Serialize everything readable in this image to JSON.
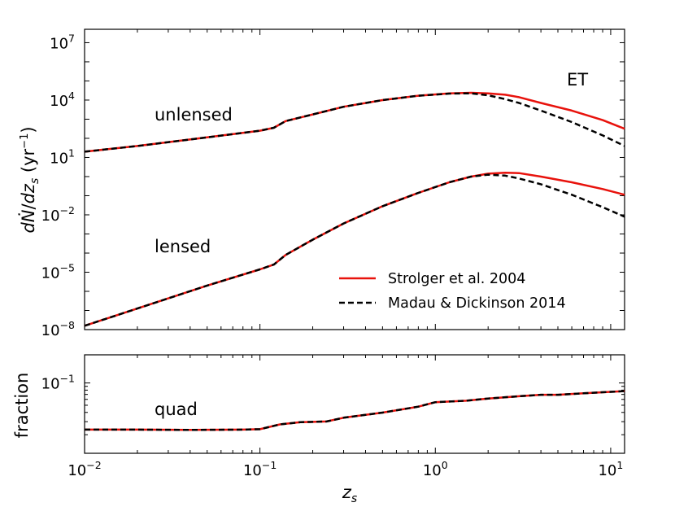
{
  "chart_data": [
    {
      "type": "line",
      "panel": "top",
      "title": "",
      "xlabel": "",
      "ylabel": "dṄ/dz_s (yr⁻¹)",
      "xscale": "log",
      "yscale": "log",
      "xlim": [
        0.01,
        12
      ],
      "ylim_exp": [
        -8,
        7.7
      ],
      "x_ticks": [
        {
          "v": 0.01,
          "base": "10",
          "exp": "−2"
        },
        {
          "v": 0.1,
          "base": "10",
          "exp": "−1"
        },
        {
          "v": 1,
          "base": "10",
          "exp": "0"
        },
        {
          "v": 10,
          "base": "10",
          "exp": "1"
        }
      ],
      "y_ticks": [
        {
          "e": 7,
          "base": "10",
          "exp": "7"
        },
        {
          "e": 4,
          "base": "10",
          "exp": "4"
        },
        {
          "e": 1,
          "base": "10",
          "exp": "1"
        },
        {
          "e": -2,
          "base": "10",
          "exp": "−2"
        },
        {
          "e": -5,
          "base": "10",
          "exp": "−5"
        },
        {
          "e": -8,
          "base": "10",
          "exp": "−8"
        }
      ],
      "annotations": {
        "label_tag": "ET",
        "unlensed": "unlensed",
        "lensed": "lensed"
      },
      "legend": {
        "placement": "lower-right",
        "entries": [
          {
            "label": "Strolger et al. 2004",
            "style": "solid",
            "color": "#e8120c"
          },
          {
            "label": "Madau & Dickinson 2014",
            "style": "dashed",
            "color": "#000000"
          }
        ]
      },
      "series": [
        {
          "name": "unlensed – Strolger et al. 2004",
          "color": "#e8120c",
          "style": "solid",
          "x": [
            0.01,
            0.02,
            0.05,
            0.1,
            0.12,
            0.14,
            0.2,
            0.3,
            0.5,
            0.8,
            1.2,
            1.6,
            2.0,
            2.5,
            3,
            4,
            6,
            9,
            12
          ],
          "logy": [
            1.3,
            1.6,
            2.05,
            2.4,
            2.55,
            2.9,
            3.25,
            3.65,
            4.0,
            4.23,
            4.35,
            4.38,
            4.35,
            4.28,
            4.15,
            3.85,
            3.45,
            2.95,
            2.5
          ]
        },
        {
          "name": "unlensed – Madau & Dickinson 2014",
          "color": "#000000",
          "style": "dashed",
          "x": [
            0.01,
            0.02,
            0.05,
            0.1,
            0.12,
            0.14,
            0.2,
            0.3,
            0.5,
            0.8,
            1.2,
            1.6,
            2.0,
            2.5,
            3,
            4,
            6,
            9,
            12
          ],
          "logy": [
            1.3,
            1.6,
            2.05,
            2.4,
            2.55,
            2.9,
            3.25,
            3.65,
            4.0,
            4.23,
            4.34,
            4.35,
            4.25,
            4.05,
            3.85,
            3.45,
            2.85,
            2.15,
            1.6
          ]
        },
        {
          "name": "lensed – Strolger et al. 2004",
          "color": "#e8120c",
          "style": "solid",
          "x": [
            0.01,
            0.02,
            0.05,
            0.1,
            0.12,
            0.14,
            0.2,
            0.3,
            0.5,
            0.8,
            1.2,
            1.6,
            2.0,
            2.5,
            3,
            4,
            6,
            9,
            12
          ],
          "logy": [
            -7.8,
            -6.9,
            -5.7,
            -4.85,
            -4.6,
            -4.1,
            -3.3,
            -2.45,
            -1.55,
            -0.85,
            -0.3,
            0.0,
            0.15,
            0.2,
            0.18,
            0.0,
            -0.3,
            -0.65,
            -0.95
          ]
        },
        {
          "name": "lensed – Madau & Dickinson 2014",
          "color": "#000000",
          "style": "dashed",
          "x": [
            0.01,
            0.02,
            0.05,
            0.1,
            0.12,
            0.14,
            0.2,
            0.3,
            0.5,
            0.8,
            1.2,
            1.6,
            2.0,
            2.5,
            3,
            4,
            6,
            9,
            12
          ],
          "logy": [
            -7.8,
            -6.9,
            -5.7,
            -4.85,
            -4.6,
            -4.1,
            -3.3,
            -2.45,
            -1.55,
            -0.85,
            -0.3,
            0.0,
            0.1,
            0.05,
            -0.1,
            -0.4,
            -0.95,
            -1.6,
            -2.1
          ]
        }
      ]
    },
    {
      "type": "line",
      "panel": "bottom",
      "xlabel": "z_s",
      "ylabel": "fraction",
      "xscale": "log",
      "yscale": "log",
      "xlim": [
        0.01,
        12
      ],
      "ylim_exp": [
        -1.95,
        -0.62
      ],
      "y_ticks": [
        {
          "e": -1,
          "base": "10",
          "exp": "−1"
        }
      ],
      "annotations": {
        "quad": "quad"
      },
      "series": [
        {
          "name": "quad – Strolger et al. 2004",
          "color": "#e8120c",
          "style": "solid",
          "x": [
            0.01,
            0.02,
            0.04,
            0.08,
            0.1,
            0.13,
            0.17,
            0.24,
            0.3,
            0.5,
            0.8,
            1.0,
            1.5,
            2.0,
            3.0,
            4.0,
            5.0,
            7.0,
            10.0,
            12.0
          ],
          "logy": [
            -1.63,
            -1.63,
            -1.635,
            -1.63,
            -1.625,
            -1.56,
            -1.53,
            -1.52,
            -1.47,
            -1.4,
            -1.32,
            -1.26,
            -1.24,
            -1.21,
            -1.18,
            -1.16,
            -1.16,
            -1.14,
            -1.12,
            -1.11
          ]
        },
        {
          "name": "quad – Madau & Dickinson 2014",
          "color": "#000000",
          "style": "dashed",
          "x": [
            0.01,
            0.02,
            0.04,
            0.08,
            0.1,
            0.13,
            0.17,
            0.24,
            0.3,
            0.5,
            0.8,
            1.0,
            1.5,
            2.0,
            3.0,
            4.0,
            5.0,
            7.0,
            10.0,
            12.0
          ],
          "logy": [
            -1.63,
            -1.63,
            -1.635,
            -1.63,
            -1.625,
            -1.56,
            -1.53,
            -1.52,
            -1.47,
            -1.4,
            -1.32,
            -1.26,
            -1.24,
            -1.21,
            -1.18,
            -1.16,
            -1.16,
            -1.14,
            -1.12,
            -1.11
          ]
        }
      ]
    }
  ]
}
